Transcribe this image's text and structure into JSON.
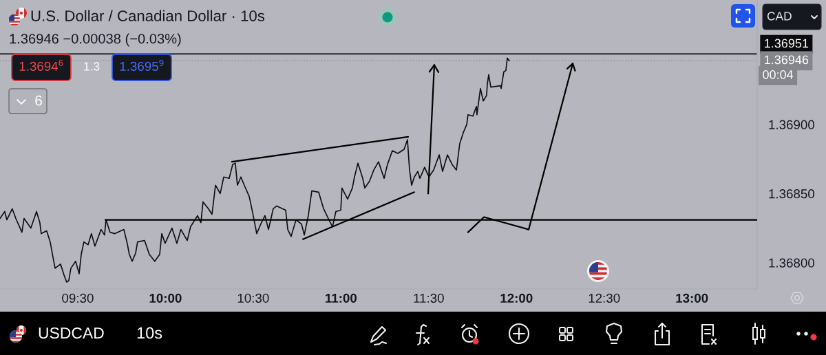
{
  "chart_data": {
    "type": "line",
    "title": "U.S. Dollar / Canadian Dollar · 10s",
    "subtitle": "1.36946 −0.00038 (−0.03%)",
    "series": [
      {
        "color": "#0e0f12",
        "x": [
          9.057,
          9.084,
          9.096,
          9.127,
          9.147,
          9.182,
          9.194,
          9.233,
          9.265,
          9.284,
          9.292,
          9.323,
          9.343,
          9.359,
          9.371,
          9.402,
          9.422,
          9.437,
          9.449,
          9.461,
          9.488,
          9.508,
          9.52,
          9.535,
          9.559,
          9.578,
          9.598,
          9.633,
          9.653,
          9.661,
          9.684,
          9.712,
          9.763,
          9.782,
          9.794,
          9.81,
          9.83,
          9.841,
          9.881,
          9.908,
          9.939,
          9.967,
          9.979,
          9.998,
          10.037,
          10.065,
          10.088,
          10.124,
          10.143,
          10.183,
          10.202,
          10.214,
          10.245,
          10.265,
          10.285,
          10.312,
          10.332,
          10.363,
          10.383,
          10.398,
          10.41,
          10.43,
          10.449,
          10.477,
          10.489,
          10.508,
          10.52,
          10.547,
          10.567,
          10.587,
          10.614,
          10.634,
          10.685,
          10.697,
          10.716,
          10.744,
          10.775,
          10.791,
          10.814,
          10.834,
          10.873,
          10.901,
          10.928,
          10.952,
          10.971,
          10.999,
          11.006,
          11.038,
          11.065,
          11.077,
          11.097,
          11.124,
          11.136,
          11.163,
          11.187,
          11.214,
          11.246,
          11.265,
          11.293,
          11.324,
          11.36,
          11.379,
          11.391,
          11.403,
          11.418,
          11.438,
          11.45,
          11.477,
          11.501,
          11.528,
          11.56,
          11.579,
          11.607,
          11.634,
          11.658,
          11.677,
          11.697,
          11.717,
          11.724,
          11.752,
          11.772,
          11.775,
          11.795,
          11.811,
          11.83,
          11.834,
          11.842,
          11.854,
          11.909,
          11.913,
          11.928,
          11.94,
          11.948,
          11.96
        ],
        "values": [
          1.36832,
          1.36837,
          1.36831,
          1.36839,
          1.36832,
          1.36822,
          1.36832,
          1.36825,
          1.36837,
          1.36829,
          1.36821,
          1.36823,
          1.36815,
          1.36804,
          1.36796,
          1.36799,
          1.36791,
          1.36786,
          1.36787,
          1.36796,
          1.36801,
          1.36792,
          1.36806,
          1.36815,
          1.36813,
          1.36821,
          1.36812,
          1.36824,
          1.3682,
          1.36831,
          1.36822,
          1.36821,
          1.36824,
          1.36814,
          1.36806,
          1.36801,
          1.36807,
          1.36815,
          1.36816,
          1.36806,
          1.36801,
          1.36806,
          1.36821,
          1.36814,
          1.36825,
          1.36814,
          1.36824,
          1.36816,
          1.36826,
          1.36834,
          1.36829,
          1.36844,
          1.36839,
          1.36835,
          1.36856,
          1.3685,
          1.36862,
          1.36861,
          1.36871,
          1.36872,
          1.36856,
          1.36862,
          1.36856,
          1.36848,
          1.36841,
          1.36829,
          1.36821,
          1.36829,
          1.36834,
          1.36824,
          1.36839,
          1.36841,
          1.36838,
          1.36824,
          1.36819,
          1.36831,
          1.36828,
          1.3682,
          1.36834,
          1.36852,
          1.36851,
          1.36839,
          1.36832,
          1.36826,
          1.36837,
          1.36838,
          1.36854,
          1.36846,
          1.36854,
          1.36862,
          1.36872,
          1.36861,
          1.36854,
          1.36859,
          1.36867,
          1.36873,
          1.36861,
          1.36871,
          1.36881,
          1.36879,
          1.36882,
          1.36889,
          1.36867,
          1.36856,
          1.36862,
          1.36866,
          1.36861,
          1.36869,
          1.36862,
          1.36867,
          1.36878,
          1.36866,
          1.36878,
          1.36871,
          1.36867,
          1.36886,
          1.36894,
          1.369,
          1.36907,
          1.36906,
          1.36913,
          1.36907,
          1.36926,
          1.36917,
          1.36921,
          1.36929,
          1.36936,
          1.36927,
          1.36928,
          1.36926,
          1.36938,
          1.36939,
          1.36948,
          1.36946
        ]
      },
      {
        "color": "#000000",
        "x": [
          9.657,
          13.372
        ],
        "values": [
          1.36831,
          1.36831
        ]
      },
      {
        "color": "#000000",
        "x": [
          10.379,
          11.383
        ],
        "values": [
          1.36873,
          1.36891
        ]
      },
      {
        "color": "#000000",
        "x": [
          10.783,
          11.418
        ],
        "values": [
          1.36817,
          1.36851
        ]
      },
      {
        "color": "#000000",
        "x": [
          11.497,
          11.532
        ],
        "values": [
          1.3685,
          1.36943
        ]
      },
      {
        "color": "#000000",
        "x": [
          11.724,
          11.815,
          12.07,
          12.321
        ],
        "values": [
          1.36822,
          1.36833,
          1.36824,
          1.36944
        ]
      }
    ],
    "xlim": [
      9.057,
      13.372
    ],
    "xticks": [
      {
        "value": 9.5,
        "label": "09:30"
      },
      {
        "value": 10,
        "label": "10:00"
      },
      {
        "value": 10.5,
        "label": "10:30"
      },
      {
        "value": 11,
        "label": "11:00"
      },
      {
        "value": 11.5,
        "label": "11:30"
      },
      {
        "value": 12,
        "label": "12:00"
      },
      {
        "value": 12.5,
        "label": "12:30"
      },
      {
        "value": 13,
        "label": "13:00"
      }
    ],
    "ylim": [
      1.36781,
      1.3699
    ],
    "yticks": [
      {
        "value": 1.368,
        "label": "1.36800"
      },
      {
        "value": 1.3685,
        "label": "1.36850"
      },
      {
        "value": 1.369,
        "label": "1.36900"
      }
    ],
    "ref_lines": [
      {
        "axis": "y",
        "value": 1.36951,
        "label": "1.36951",
        "color": "#0b0b0e",
        "line_style": "solid"
      },
      {
        "axis": "y",
        "value": 1.36946,
        "label": "1.36946",
        "color": "#85868c",
        "line_style": "dotted"
      }
    ],
    "annotations": [
      "1.3694$^{6}$",
      "1.3",
      "1.3695$^{9}$",
      "6",
      "CAD",
      "00:04",
      "USDCAD",
      "10s"
    ]
  }
}
